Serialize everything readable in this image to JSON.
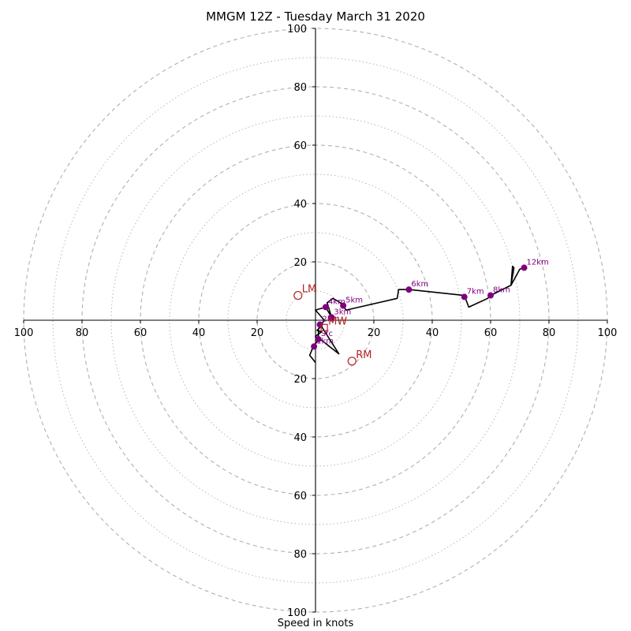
{
  "chart_data": {
    "type": "scatter",
    "title": "MMGM 12Z - Tuesday March 31 2020",
    "xlabel": "Speed in knots",
    "rings": {
      "major_step": 20,
      "minor_step": 10,
      "max": 100
    },
    "axis_ticks": [
      "20",
      "40",
      "60",
      "80",
      "100"
    ],
    "grid": true,
    "colors": {
      "hodograph": "#000000",
      "height_marker": "#800080",
      "storm_motion": "#b22222",
      "grid": "#b0b0b0"
    },
    "hodograph_trace": [
      {
        "u": 0,
        "v": -14.5
      },
      {
        "u": -2,
        "v": -12
      },
      {
        "u": -0.5,
        "v": -8.5
      },
      {
        "u": 1,
        "v": -7
      },
      {
        "u": 0,
        "v": -5.5
      },
      {
        "u": 2,
        "v": -4
      },
      {
        "u": 0.5,
        "v": -3.5
      },
      {
        "u": 2,
        "v": -2
      },
      {
        "u": 8,
        "v": -11.5
      },
      {
        "u": 1,
        "v": -6
      },
      {
        "u": 1,
        "v": -3
      },
      {
        "u": 3,
        "v": 0
      },
      {
        "u": 0,
        "v": 3.5
      },
      {
        "u": 3.5,
        "v": 4.5
      },
      {
        "u": 5.5,
        "v": 1
      },
      {
        "u": 4,
        "v": 6
      },
      {
        "u": 6,
        "v": 7.5
      },
      {
        "u": 8.5,
        "v": 6
      },
      {
        "u": 10.5,
        "v": 3.5
      },
      {
        "u": 28,
        "v": 7.5
      },
      {
        "u": 28.5,
        "v": 10.5
      },
      {
        "u": 32,
        "v": 10.5
      },
      {
        "u": 51,
        "v": 8.5
      },
      {
        "u": 52.5,
        "v": 4.5
      },
      {
        "u": 59,
        "v": 7.5
      },
      {
        "u": 60,
        "v": 8.5
      },
      {
        "u": 67,
        "v": 12
      },
      {
        "u": 68,
        "v": 18
      },
      {
        "u": 67.5,
        "v": 18.5
      },
      {
        "u": 67,
        "v": 12
      },
      {
        "u": 70,
        "v": 17.5
      },
      {
        "u": 71.5,
        "v": 18
      }
    ],
    "height_markers": [
      {
        "label": "Sfc",
        "u": 1,
        "v": -6.5
      },
      {
        "label": "1km",
        "u": -0.5,
        "v": -9
      },
      {
        "label": "2km",
        "u": 1.5,
        "v": -1.5
      },
      {
        "label": "3km",
        "u": 5.5,
        "v": 1
      },
      {
        "label": "4km",
        "u": 3.5,
        "v": 4.5
      },
      {
        "label": "5km",
        "u": 9.5,
        "v": 5
      },
      {
        "label": "6km",
        "u": 32,
        "v": 10.5
      },
      {
        "label": "7km",
        "u": 51,
        "v": 8
      },
      {
        "label": "8km",
        "u": 60,
        "v": 8.5
      },
      {
        "label": "12km",
        "u": 71.5,
        "v": 18
      }
    ],
    "storm_motions": [
      {
        "label": "LM",
        "u": -6,
        "v": 8.5
      },
      {
        "label": "MW",
        "u": 3,
        "v": -2.5
      },
      {
        "label": "RM",
        "u": 12.5,
        "v": -14
      }
    ]
  }
}
